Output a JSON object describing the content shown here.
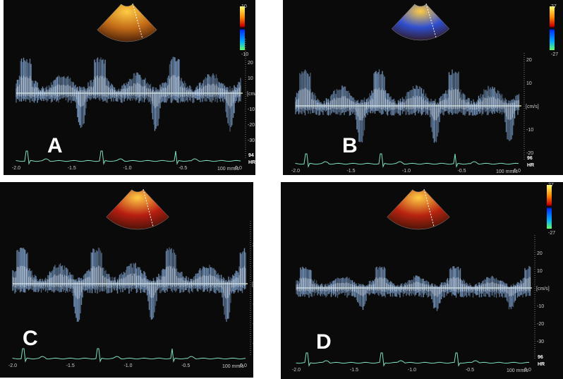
{
  "panels": [
    {
      "letter": "A",
      "hr_value": "94",
      "hr_label": "HR",
      "unit": "[cm/s]",
      "speed": "100 mm/s",
      "scale_top": "10",
      "scale_bottom": "-10",
      "y_ticks": [
        "20",
        "10",
        "-10",
        "-20",
        "-30"
      ],
      "x_ticks": [
        "-2.0",
        "-1.5",
        "-1.0",
        "-0.5",
        "0.0"
      ],
      "sector_color": "#c26a17"
    },
    {
      "letter": "B",
      "hr_value": "96",
      "hr_label": "HR",
      "unit": "[cm/s]",
      "speed": "100 mm/s",
      "scale_top": "27",
      "scale_bottom": "-27",
      "y_ticks": [
        "20",
        "10",
        "-10",
        "-20"
      ],
      "x_ticks": [
        "-2.0",
        "-1.5",
        "-1.0",
        "-0.5",
        "0.0"
      ],
      "sector_color": "#2f4fd0"
    },
    {
      "letter": "C",
      "hr_value": "95",
      "hr_label": "HR",
      "unit": "[cm/s]",
      "speed": "100 mm/s",
      "scale_top": "27",
      "scale_bottom": "-27",
      "y_ticks": [
        "20",
        "10",
        "-10",
        "-20",
        "-30"
      ],
      "x_ticks": [
        "-2.0",
        "-1.5",
        "-1.0",
        "-0.5",
        "0.0"
      ],
      "sector_color": "#b81e12"
    },
    {
      "letter": "D",
      "hr_value": "96",
      "hr_label": "HR",
      "unit": "[cm/s]",
      "speed": "100 mm/s",
      "scale_top": "27",
      "scale_bottom": "-27",
      "y_ticks": [
        "20",
        "10",
        "-10",
        "-20",
        "-30"
      ],
      "x_ticks": [
        "-2.0",
        "-1.5",
        "-1.0",
        "-0.5",
        "0.0"
      ],
      "sector_color": "#b82410"
    }
  ]
}
